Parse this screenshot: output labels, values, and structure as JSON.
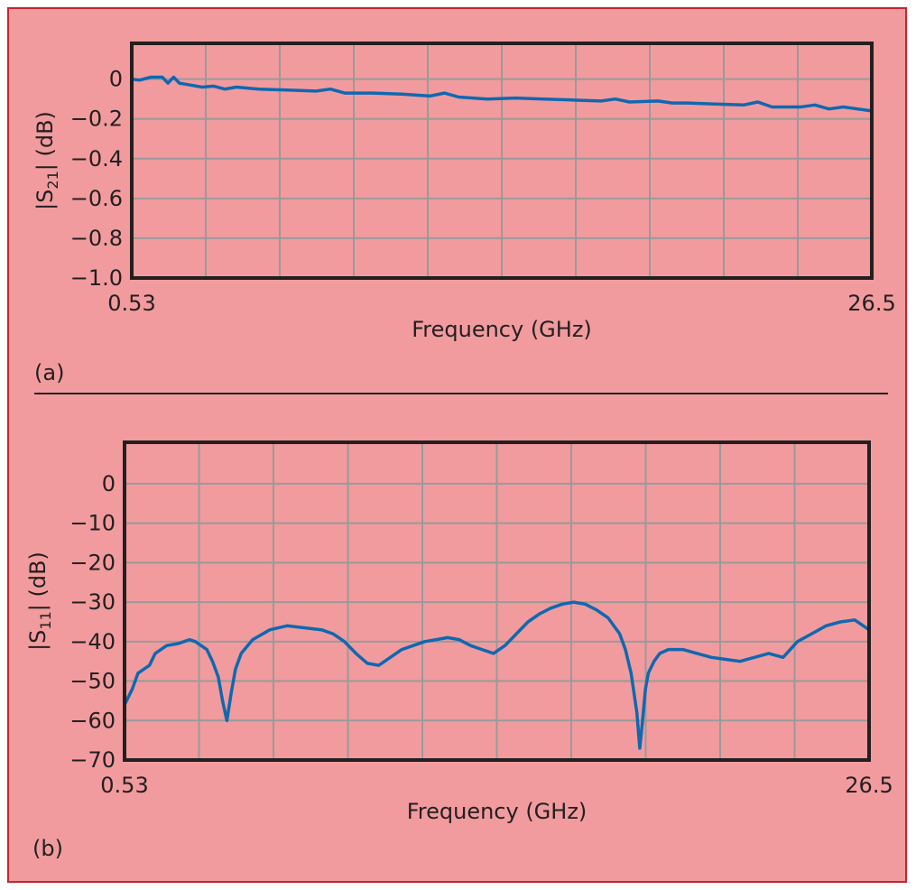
{
  "colors": {
    "background": "#f19b9e",
    "border": "#c4262e",
    "trace": "#0f68b0",
    "grid": "#9a9a9a",
    "axes": "#231f20"
  },
  "chart_data": [
    {
      "id": "a",
      "type": "line",
      "panel_label": "(a)",
      "xlabel": "Frequency (GHz)",
      "ylabel_parts": [
        "|S",
        "21",
        "| (dB)"
      ],
      "xlim": [
        0.53,
        26.5
      ],
      "ylim": [
        -1.0,
        0.18
      ],
      "x_tick_labels": [
        "0.53",
        "26.5"
      ],
      "y_ticks": [
        0,
        -0.2,
        -0.4,
        -0.6,
        -0.8,
        -1.0
      ],
      "y_tick_labels": [
        "0",
        "−0.2",
        "−0.4",
        "−0.6",
        "−0.8",
        "−1.0"
      ],
      "grid": true,
      "x_grid_divisions": 10,
      "series": [
        {
          "x": [
            0.53,
            0.8,
            1.2,
            1.6,
            1.8,
            2.0,
            2.2,
            2.6,
            3.0,
            3.4,
            3.8,
            4.2,
            5.0,
            6.0,
            7.0,
            7.5,
            8.0,
            9.0,
            10.0,
            11.0,
            11.5,
            12.0,
            13.0,
            14.0,
            15.0,
            16.0,
            17.0,
            17.5,
            18.0,
            19.0,
            19.5,
            20.0,
            21.0,
            22.0,
            22.5,
            23.0,
            24.0,
            24.5,
            25.0,
            25.5,
            26.0,
            26.5
          ],
          "y": [
            0.0,
            -0.005,
            0.01,
            0.01,
            -0.02,
            0.01,
            -0.02,
            -0.03,
            -0.04,
            -0.035,
            -0.05,
            -0.04,
            -0.05,
            -0.055,
            -0.06,
            -0.05,
            -0.07,
            -0.07,
            -0.075,
            -0.085,
            -0.07,
            -0.09,
            -0.1,
            -0.095,
            -0.1,
            -0.105,
            -0.11,
            -0.1,
            -0.115,
            -0.11,
            -0.12,
            -0.12,
            -0.125,
            -0.13,
            -0.115,
            -0.14,
            -0.14,
            -0.13,
            -0.15,
            -0.14,
            -0.15,
            -0.16
          ]
        }
      ]
    },
    {
      "id": "b",
      "type": "line",
      "panel_label": "(b)",
      "xlabel": "Frequency (GHz)",
      "ylabel_parts": [
        "|S",
        "11",
        "| (dB)"
      ],
      "xlim": [
        0.53,
        26.5
      ],
      "ylim": [
        -70,
        10.5
      ],
      "x_tick_labels": [
        "0.53",
        "26.5"
      ],
      "y_ticks": [
        0,
        -10,
        -20,
        -30,
        -40,
        -50,
        -60,
        -70
      ],
      "y_tick_labels": [
        "0",
        "−10",
        "−20",
        "−30",
        "−40",
        "−50",
        "−60",
        "−70"
      ],
      "grid": true,
      "x_grid_divisions": 10,
      "series": [
        {
          "x": [
            0.53,
            0.8,
            1.0,
            1.2,
            1.4,
            1.6,
            2.0,
            2.4,
            2.6,
            2.8,
            3.0,
            3.2,
            3.4,
            3.6,
            3.8,
            3.95,
            4.1,
            4.25,
            4.4,
            4.6,
            5.0,
            5.6,
            6.2,
            6.8,
            7.4,
            7.8,
            8.2,
            8.6,
            9.0,
            9.4,
            9.8,
            10.2,
            10.6,
            11.0,
            11.4,
            11.8,
            12.2,
            12.6,
            13.0,
            13.4,
            13.8,
            14.2,
            14.6,
            15.0,
            15.4,
            15.8,
            16.2,
            16.6,
            17.0,
            17.4,
            17.8,
            18.0,
            18.2,
            18.4,
            18.5,
            18.6,
            18.7,
            18.8,
            19.0,
            19.2,
            19.5,
            20.0,
            20.5,
            21.0,
            21.5,
            22.0,
            22.5,
            23.0,
            23.5,
            24.0,
            24.5,
            25.0,
            25.5,
            26.0,
            26.5
          ],
          "y": [
            -56,
            -52,
            -48,
            -47,
            -46,
            -43,
            -41,
            -40.5,
            -40,
            -39.5,
            -40,
            -41,
            -42,
            -45,
            -49,
            -55,
            -60,
            -53,
            -47,
            -43,
            -39.5,
            -37,
            -36,
            -36.5,
            -37,
            -38,
            -40,
            -43,
            -45.5,
            -46,
            -44,
            -42,
            -41,
            -40,
            -39.5,
            -39,
            -39.5,
            -41,
            -42,
            -43,
            -41,
            -38,
            -35,
            -33,
            -31.5,
            -30.5,
            -30,
            -30.5,
            -32,
            -34,
            -38,
            -42,
            -48,
            -58,
            -67,
            -60,
            -52,
            -48,
            -45,
            -43,
            -42,
            -42,
            -43,
            -44,
            -44.5,
            -45,
            -44,
            -43,
            -44,
            -40,
            -38,
            -36,
            -35,
            -34.5,
            -37
          ]
        }
      ]
    }
  ]
}
